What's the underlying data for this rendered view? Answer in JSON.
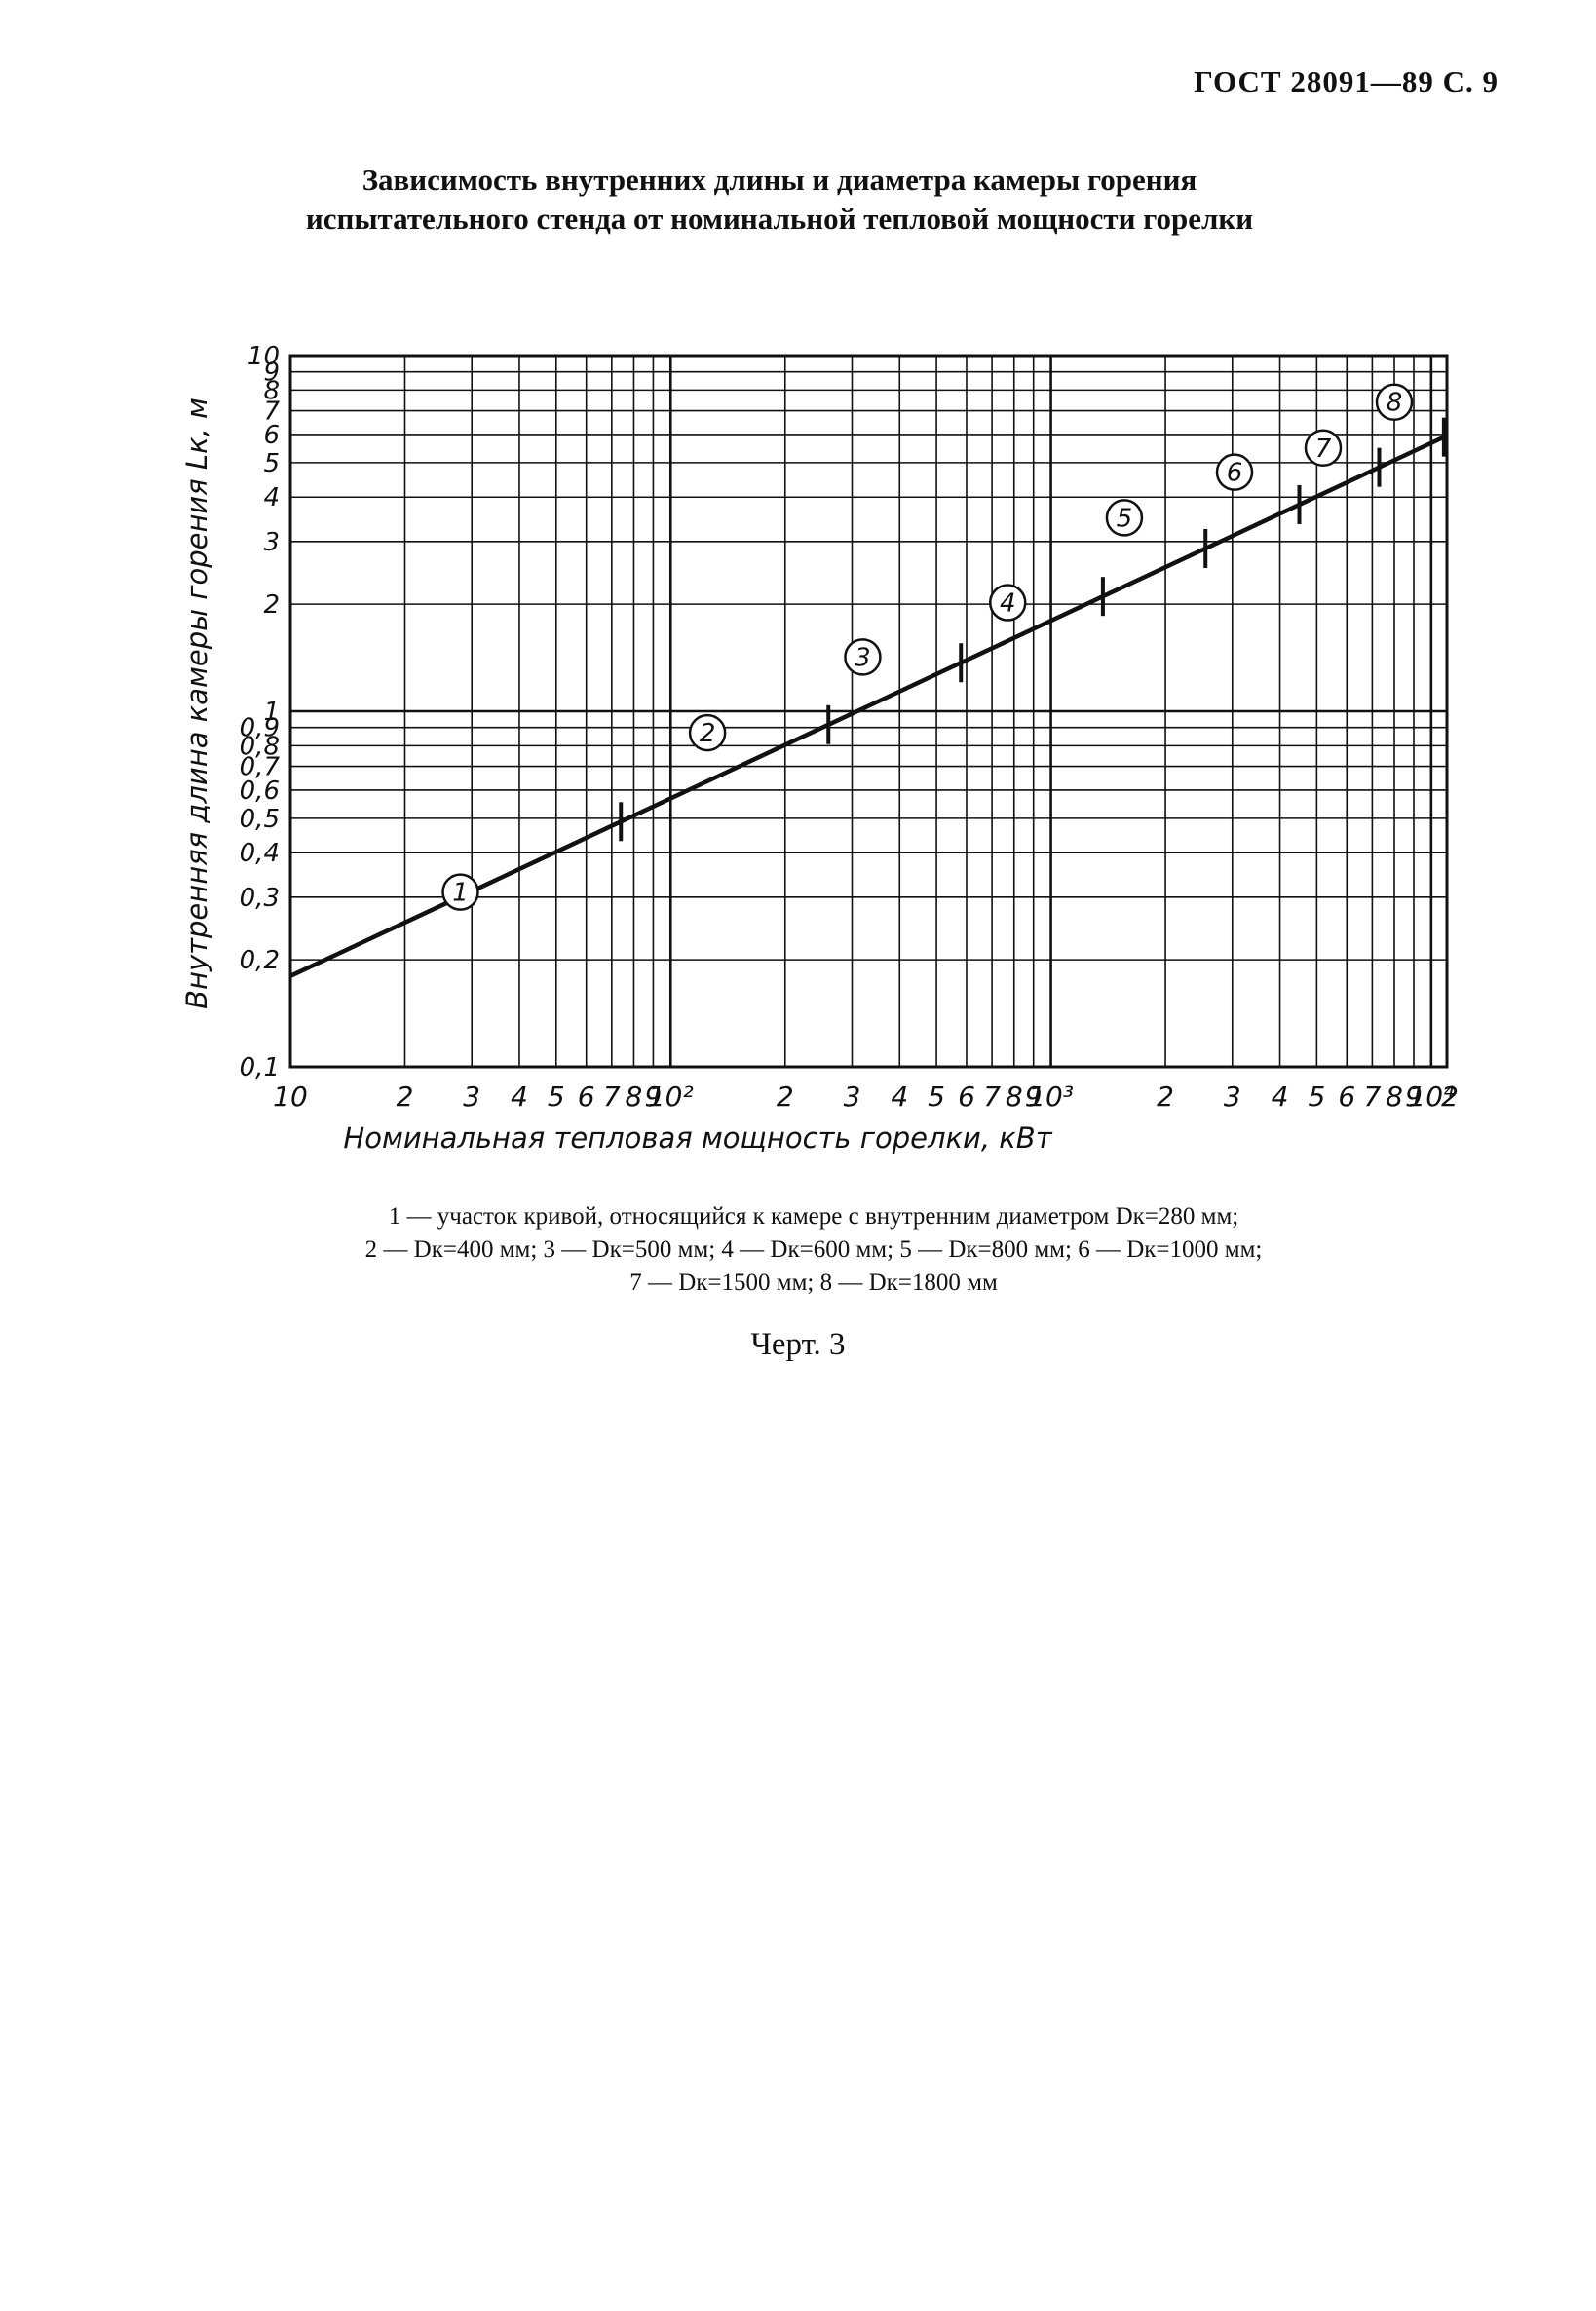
{
  "page": {
    "header": "ГОСТ 28091—89 С. 9",
    "title_line1": "Зависимость внутренних длины и диаметра камеры горения",
    "title_line2": "испытательного стенда от номинальной тепловой мощности горелки",
    "caption": "Черт. 3"
  },
  "legend": {
    "row1": "1 — участок кривой, относящийся к камере с внутренним диаметром Dк=280 мм;",
    "row2": "2 — Dк=400 мм; 3 — Dк=500 мм; 4 — Dк=600 мм; 5 — Dк=800 мм; 6 — Dк=1000 мм;",
    "row3": "7 — Dк=1500 мм; 8 — Dк=1800 мм"
  },
  "chart_data": {
    "type": "line",
    "xlabel": "Номинальная тепловая мощность горелки, кВт",
    "ylabel": "Внутренняя длина камеры горения Lк, м",
    "x_scale": "log",
    "y_scale": "log",
    "xlim": [
      10,
      11000
    ],
    "ylim": [
      0.1,
      10
    ],
    "grid": true,
    "x_tick_labels": [
      {
        "value": 10,
        "label": "10"
      },
      {
        "value": 20,
        "label": "2"
      },
      {
        "value": 30,
        "label": "3"
      },
      {
        "value": 40,
        "label": "4"
      },
      {
        "value": 50,
        "label": "5"
      },
      {
        "value": 60,
        "label": "6"
      },
      {
        "value": 70,
        "label": "7"
      },
      {
        "value": 80,
        "label": "8"
      },
      {
        "value": 90,
        "label": "9"
      },
      {
        "value": 100,
        "label": "10²"
      },
      {
        "value": 200,
        "label": "2"
      },
      {
        "value": 300,
        "label": "3"
      },
      {
        "value": 400,
        "label": "4"
      },
      {
        "value": 500,
        "label": "5"
      },
      {
        "value": 600,
        "label": "6"
      },
      {
        "value": 700,
        "label": "7"
      },
      {
        "value": 800,
        "label": "8"
      },
      {
        "value": 900,
        "label": "9"
      },
      {
        "value": 1000,
        "label": "10³"
      },
      {
        "value": 2000,
        "label": "2"
      },
      {
        "value": 3000,
        "label": "3"
      },
      {
        "value": 4000,
        "label": "4"
      },
      {
        "value": 5000,
        "label": "5"
      },
      {
        "value": 6000,
        "label": "6"
      },
      {
        "value": 7000,
        "label": "7"
      },
      {
        "value": 8000,
        "label": "8"
      },
      {
        "value": 9000,
        "label": "9"
      },
      {
        "value": 10000,
        "label": "10⁴"
      },
      {
        "value": 20000,
        "label": "2"
      }
    ],
    "y_tick_labels": [
      {
        "value": 0.1,
        "label": "0,1"
      },
      {
        "value": 0.2,
        "label": "0,2"
      },
      {
        "value": 0.3,
        "label": "0,3"
      },
      {
        "value": 0.4,
        "label": "0,4"
      },
      {
        "value": 0.5,
        "label": "0,5"
      },
      {
        "value": 0.6,
        "label": "0,6"
      },
      {
        "value": 0.7,
        "label": "0,7"
      },
      {
        "value": 0.8,
        "label": "0,8"
      },
      {
        "value": 0.9,
        "label": "0,9"
      },
      {
        "value": 1,
        "label": "1"
      },
      {
        "value": 2,
        "label": "2"
      },
      {
        "value": 3,
        "label": "3"
      },
      {
        "value": 4,
        "label": "4"
      },
      {
        "value": 5,
        "label": "5"
      },
      {
        "value": 6,
        "label": "6"
      },
      {
        "value": 7,
        "label": "7"
      },
      {
        "value": 8,
        "label": "8"
      },
      {
        "value": 9,
        "label": "9"
      },
      {
        "value": 10,
        "label": "10"
      }
    ],
    "series": [
      {
        "x": [
          10,
          10800
        ],
        "y": [
          0.18,
          5.9
        ]
      }
    ],
    "segment_ticks_x": [
      74,
      260,
      580,
      1370,
      2550,
      4500,
      7300,
      10800
    ],
    "segment_markers": [
      {
        "label": "1",
        "x": 28,
        "y": 0.31
      },
      {
        "label": "2",
        "x": 125,
        "y": 0.87
      },
      {
        "label": "3",
        "x": 320,
        "y": 1.42
      },
      {
        "label": "4",
        "x": 770,
        "y": 2.02
      },
      {
        "label": "5",
        "x": 1560,
        "y": 3.5
      },
      {
        "label": "6",
        "x": 3040,
        "y": 4.7
      },
      {
        "label": "7",
        "x": 5200,
        "y": 5.5
      },
      {
        "label": "8",
        "x": 8000,
        "y": 7.4
      }
    ]
  }
}
